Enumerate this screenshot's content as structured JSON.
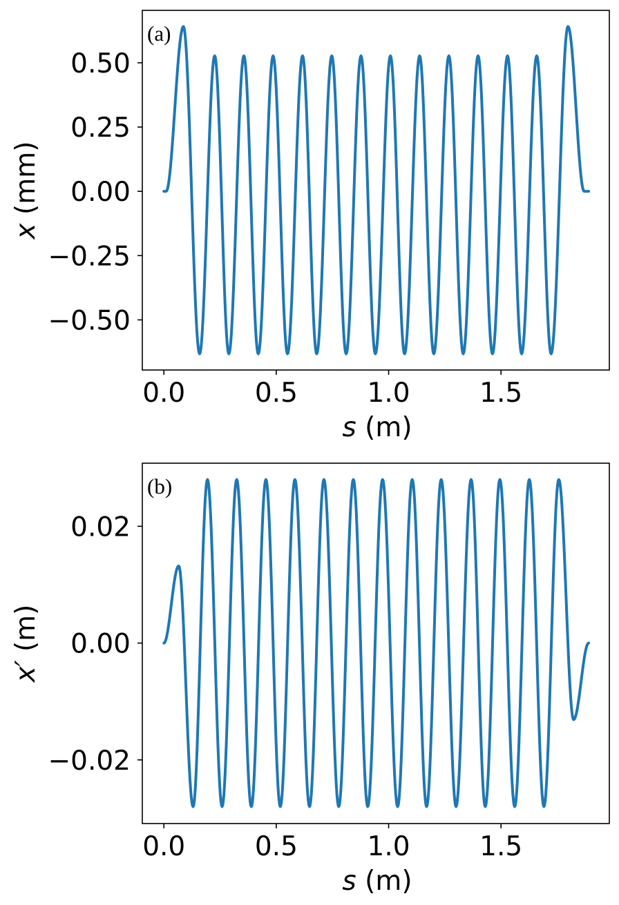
{
  "chart_data": [
    {
      "type": "line",
      "panel_label": "(a)",
      "xlabel": {
        "var": "s",
        "unit": "(m)"
      },
      "ylabel": {
        "var": "x",
        "unit": "(mm)"
      },
      "xlim": [
        -0.096,
        1.982
      ],
      "ylim": [
        -0.695,
        0.704
      ],
      "xticks": [
        {
          "value": 0.0,
          "label": "0.0"
        },
        {
          "value": 0.5,
          "label": "0.5"
        },
        {
          "value": 1.0,
          "label": "1.0"
        },
        {
          "value": 1.5,
          "label": "1.5"
        }
      ],
      "yticks": [
        {
          "value": 0.5,
          "label": "0.50"
        },
        {
          "value": 0.25,
          "label": "0.25"
        },
        {
          "value": 0.0,
          "label": "0.00"
        },
        {
          "value": -0.25,
          "label": "−0.25"
        },
        {
          "value": -0.5,
          "label": "−0.50"
        }
      ],
      "grid": false,
      "line_color": "#1f77b4",
      "series": [
        {
          "x": [
            0,
            0.01,
            0.087,
            0.159,
            0.226,
            0.289,
            0.356,
            0.42,
            0.486,
            0.55,
            0.617,
            0.68,
            0.747,
            0.811,
            0.877,
            0.941,
            1.008,
            1.071,
            1.138,
            1.201,
            1.268,
            1.332,
            1.398,
            1.462,
            1.529,
            1.592,
            1.659,
            1.723,
            1.798,
            1.87,
            1.89
          ],
          "y": [
            0,
            0,
            0.641,
            -0.632,
            0.527,
            -0.632,
            0.527,
            -0.632,
            0.527,
            -0.632,
            0.527,
            -0.632,
            0.527,
            -0.632,
            0.527,
            -0.632,
            0.527,
            -0.632,
            0.527,
            -0.632,
            0.527,
            -0.632,
            0.527,
            -0.632,
            0.527,
            -0.632,
            0.527,
            -0.632,
            0.641,
            0,
            0
          ]
        }
      ]
    },
    {
      "type": "line",
      "panel_label": "(b)",
      "xlabel": {
        "var": "s",
        "unit": "(m)"
      },
      "ylabel": {
        "var": "x′",
        "unit": "(m)"
      },
      "xlim": [
        -0.096,
        1.982
      ],
      "ylim": [
        -0.0309,
        0.0308
      ],
      "xticks": [
        {
          "value": 0.0,
          "label": "0.0"
        },
        {
          "value": 0.5,
          "label": "0.5"
        },
        {
          "value": 1.0,
          "label": "1.0"
        },
        {
          "value": 1.5,
          "label": "1.5"
        }
      ],
      "yticks": [
        {
          "value": 0.02,
          "label": "0.02"
        },
        {
          "value": 0.0,
          "label": "0.00"
        },
        {
          "value": -0.02,
          "label": "−0.02"
        }
      ],
      "grid": false,
      "line_color": "#1f77b4",
      "series": [
        {
          "x": [
            0,
            0.066,
            0.13,
            0.194,
            0.259,
            0.324,
            0.389,
            0.454,
            0.518,
            0.583,
            0.648,
            0.712,
            0.778,
            0.843,
            0.907,
            0.973,
            1.04,
            1.105,
            1.169,
            1.234,
            1.3,
            1.367,
            1.43,
            1.495,
            1.561,
            1.626,
            1.691,
            1.757,
            1.823,
            1.89
          ],
          "y": [
            0,
            0.0132,
            -0.028,
            0.028,
            -0.028,
            0.028,
            -0.028,
            0.028,
            -0.028,
            0.028,
            -0.028,
            0.028,
            -0.028,
            0.028,
            -0.028,
            0.028,
            -0.028,
            0.028,
            -0.028,
            0.028,
            -0.028,
            0.028,
            -0.028,
            0.028,
            -0.028,
            0.028,
            -0.028,
            0.028,
            -0.0131,
            0
          ]
        }
      ]
    }
  ]
}
